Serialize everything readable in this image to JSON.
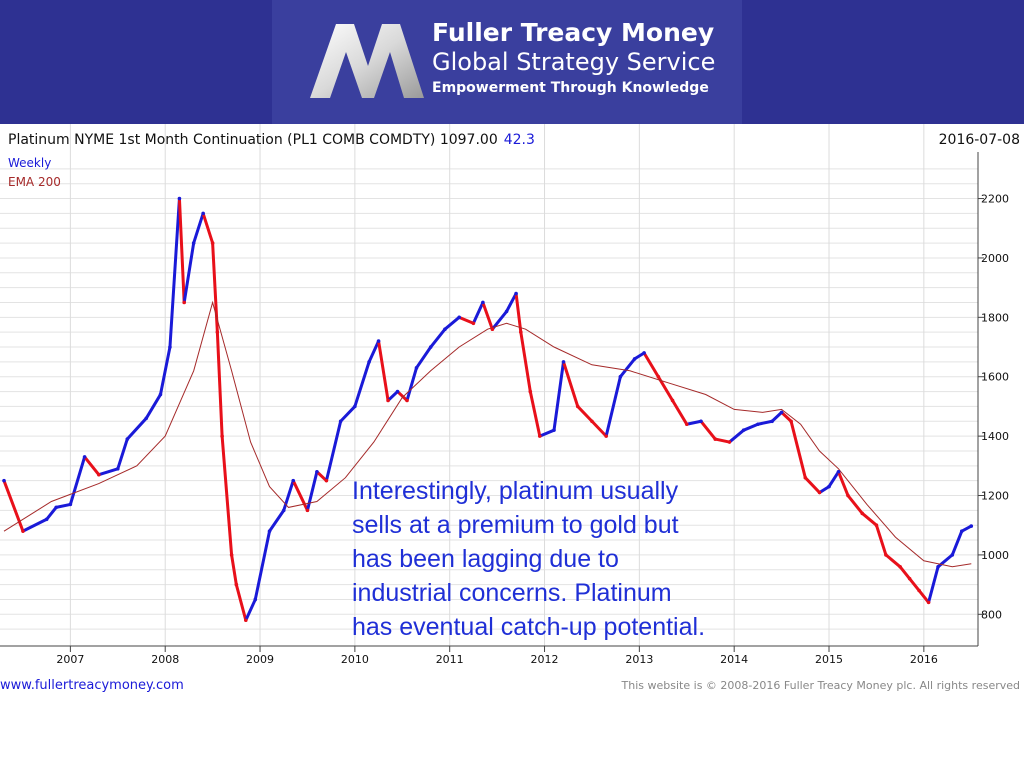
{
  "header": {
    "brand_name": "Fuller Treacy Money",
    "brand_service": "Global Strategy Service",
    "tagline": "Empowerment Through Knowledge",
    "logo_icon": "m-logo-icon",
    "background_color": "#2e3192"
  },
  "chart_title": {
    "main": "Platinum NYME 1st Month Continuation (PL1 COMB COMDTY) 1097.00",
    "change": "42.3",
    "date": "2016-07-08"
  },
  "legend": {
    "frequency": "Weekly",
    "ema": "EMA 200"
  },
  "annotation": "Interestingly, platinum usually\nsells at a premium to gold but\nhas been lagging due to\nindustrial concerns.  Platinum\nhas eventual catch-up potential.",
  "footer": {
    "website": "www.fullertreacymoney.com",
    "copyright": "This website is © 2008-2016 Fuller Treacy Money plc. All rights reserved"
  },
  "colors": {
    "up_bar": "#1a1ad8",
    "down_bar": "#e8101a",
    "ema_line": "#a52a2a",
    "annotation_text": "#1f2fd6",
    "change_text": "#1a1ad8"
  },
  "chart_data": {
    "type": "line",
    "xlabel": "",
    "ylabel": "",
    "ylim": [
      700,
      2350
    ],
    "xlim": [
      2006.3,
      2016.55
    ],
    "y_ticks": [
      800,
      1000,
      1200,
      1400,
      1600,
      1800,
      2000,
      2200
    ],
    "x_ticks": [
      {
        "value": 2007.0,
        "label": "2007"
      },
      {
        "value": 2008.0,
        "label": "2008"
      },
      {
        "value": 2009.0,
        "label": "2009"
      },
      {
        "value": 2010.0,
        "label": "2010"
      },
      {
        "value": 2011.0,
        "label": "2011"
      },
      {
        "value": 2012.0,
        "label": "2012"
      },
      {
        "value": 2013.0,
        "label": "2013"
      },
      {
        "value": 2014.0,
        "label": "2014"
      },
      {
        "value": 2015.0,
        "label": "2015"
      },
      {
        "value": 2016.0,
        "label": "2016"
      }
    ],
    "grid": true,
    "series": [
      {
        "name": "Weekly",
        "x": [
          2006.3,
          2006.5,
          2006.75,
          2006.85,
          2007.0,
          2007.15,
          2007.3,
          2007.5,
          2007.6,
          2007.8,
          2007.95,
          2008.05,
          2008.15,
          2008.2,
          2008.3,
          2008.4,
          2008.5,
          2008.55,
          2008.6,
          2008.7,
          2008.75,
          2008.85,
          2008.95,
          2009.1,
          2009.25,
          2009.35,
          2009.5,
          2009.6,
          2009.7,
          2009.85,
          2010.0,
          2010.15,
          2010.25,
          2010.35,
          2010.45,
          2010.55,
          2010.65,
          2010.8,
          2010.95,
          2011.1,
          2011.25,
          2011.35,
          2011.45,
          2011.6,
          2011.7,
          2011.75,
          2011.85,
          2011.95,
          2012.1,
          2012.2,
          2012.35,
          2012.5,
          2012.65,
          2012.8,
          2012.95,
          2013.05,
          2013.2,
          2013.35,
          2013.5,
          2013.65,
          2013.8,
          2013.95,
          2014.1,
          2014.25,
          2014.4,
          2014.5,
          2014.6,
          2014.75,
          2014.9,
          2015.0,
          2015.1,
          2015.2,
          2015.35,
          2015.5,
          2015.6,
          2015.75,
          2015.85,
          2015.95,
          2016.05,
          2016.15,
          2016.3,
          2016.4,
          2016.5
        ],
        "values": [
          1250,
          1080,
          1120,
          1160,
          1170,
          1330,
          1270,
          1290,
          1390,
          1460,
          1540,
          1700,
          2200,
          1850,
          2050,
          2150,
          2050,
          1750,
          1400,
          1000,
          900,
          780,
          850,
          1080,
          1150,
          1250,
          1150,
          1280,
          1250,
          1450,
          1500,
          1650,
          1720,
          1520,
          1550,
          1520,
          1630,
          1700,
          1760,
          1800,
          1780,
          1850,
          1760,
          1820,
          1880,
          1750,
          1550,
          1400,
          1420,
          1650,
          1500,
          1450,
          1400,
          1600,
          1660,
          1680,
          1600,
          1520,
          1440,
          1450,
          1390,
          1380,
          1420,
          1440,
          1450,
          1480,
          1450,
          1260,
          1210,
          1230,
          1280,
          1200,
          1140,
          1100,
          1000,
          960,
          920,
          880,
          840,
          960,
          1000,
          1080,
          1097
        ]
      },
      {
        "name": "EMA 200",
        "x": [
          2006.3,
          2006.8,
          2007.3,
          2007.7,
          2008.0,
          2008.3,
          2008.5,
          2008.7,
          2008.9,
          2009.1,
          2009.3,
          2009.6,
          2009.9,
          2010.2,
          2010.5,
          2010.8,
          2011.1,
          2011.4,
          2011.6,
          2011.8,
          2012.1,
          2012.5,
          2012.9,
          2013.3,
          2013.7,
          2014.0,
          2014.3,
          2014.5,
          2014.7,
          2014.9,
          2015.1,
          2015.4,
          2015.7,
          2016.0,
          2016.3,
          2016.5
        ],
        "values": [
          1080,
          1180,
          1240,
          1300,
          1400,
          1620,
          1850,
          1620,
          1380,
          1230,
          1160,
          1180,
          1260,
          1380,
          1530,
          1620,
          1700,
          1760,
          1780,
          1760,
          1700,
          1640,
          1620,
          1580,
          1540,
          1490,
          1480,
          1490,
          1440,
          1350,
          1290,
          1170,
          1060,
          980,
          960,
          970
        ]
      }
    ]
  }
}
